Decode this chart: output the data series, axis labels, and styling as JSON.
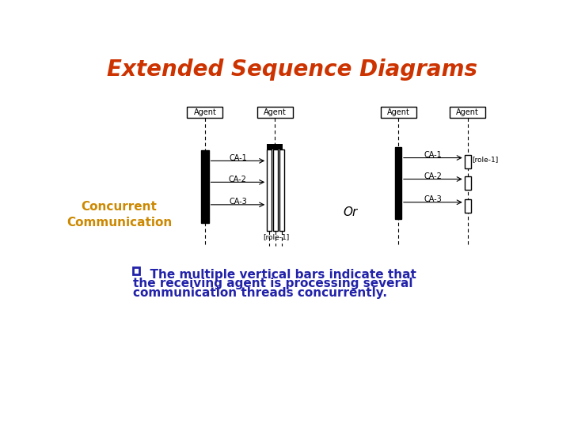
{
  "title": "Extended Sequence Diagrams",
  "title_color": "#CC3300",
  "title_fontsize": 20,
  "title_style": "italic",
  "title_weight": "bold",
  "sidebar_label": "Concurrent\nCommunication",
  "sidebar_color": "#CC8800",
  "sidebar_fontsize": 11,
  "sidebar_weight": "bold",
  "bullet_color": "#2222AA",
  "bullet_text_line1": "  The multiple vertical bars indicate that",
  "bullet_text_line2": "the receiving agent is processing several",
  "bullet_text_line3": "communication threads concurrently.",
  "bullet_fontsize": 11,
  "bg_color": "#FFFFFF",
  "messages_left": [
    "CA-1",
    "CA-2",
    "CA-3"
  ],
  "messages_right": [
    "CA-1",
    "CA-2",
    "CA-3"
  ],
  "role_label_left": "[role-1]",
  "role_label_right": "[role-1]",
  "or_text": "Or"
}
